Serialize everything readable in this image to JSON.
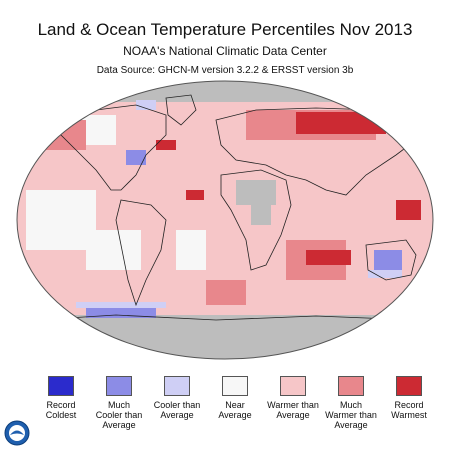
{
  "header": {
    "title": "Land & Ocean Temperature Percentiles Nov 2013",
    "subtitle": "NOAA's National Climatic Data Center",
    "source": "Data Source: GHCN-M version 3.2.2 & ERSST version 3b"
  },
  "legend": [
    {
      "label_lines": [
        "Record",
        "Coldest"
      ],
      "color": "#2b2bcc"
    },
    {
      "label_lines": [
        "Much",
        "Cooler than",
        "Average"
      ],
      "color": "#8c8ce6"
    },
    {
      "label_lines": [
        "Cooler than",
        "Average"
      ],
      "color": "#cfcff5"
    },
    {
      "label_lines": [
        "Near",
        "Average"
      ],
      "color": "#f7f7f7"
    },
    {
      "label_lines": [
        "Warmer than",
        "Average"
      ],
      "color": "#f6c6c8"
    },
    {
      "label_lines": [
        "Much",
        "Warmer than",
        "Average"
      ],
      "color": "#e8878c"
    },
    {
      "label_lines": [
        "Record",
        "Warmest"
      ],
      "color": "#cc2a33"
    }
  ],
  "map": {
    "colors": {
      "no_data": "#bdbdbd",
      "ocean_base": "#f6c6c8",
      "much_warmer": "#e8878c",
      "record_warmest": "#cc2a33",
      "near_average": "#f7f7f7",
      "cooler": "#cfcff5",
      "much_cooler": "#8c8ce6"
    }
  },
  "logo": {
    "name": "noaa-logo",
    "text": "NOAA"
  }
}
